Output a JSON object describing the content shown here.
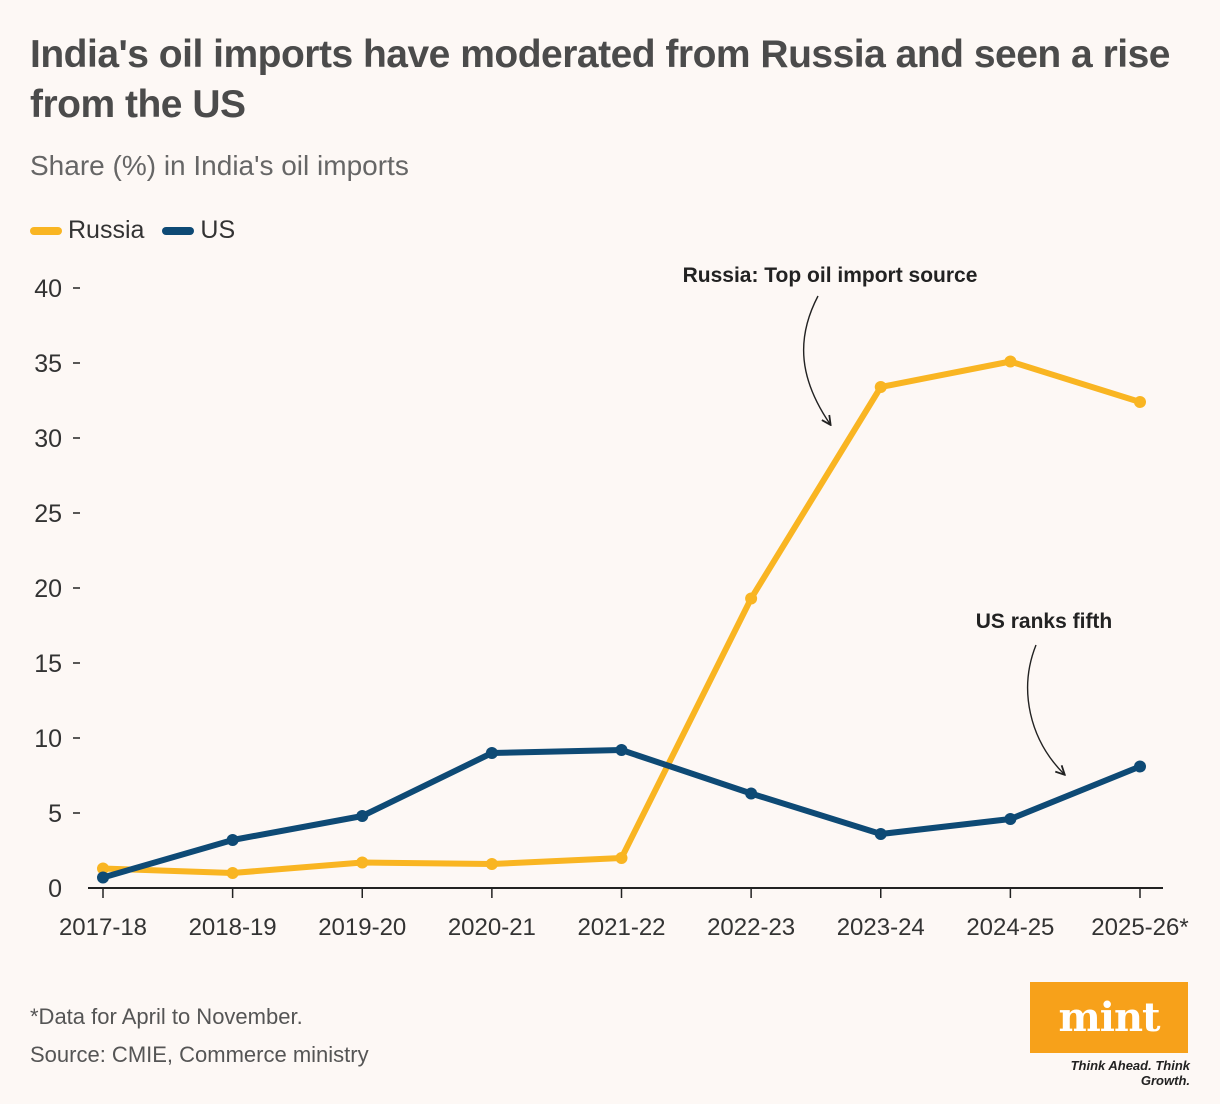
{
  "title": "India's oil imports have moderated from Russia and seen a rise from the US",
  "subtitle": "Share (%) in India's oil imports",
  "footnote": "*Data for April to November.",
  "source": "Source: CMIE, Commerce ministry",
  "logo": {
    "word": "mint",
    "tagline": "Think Ahead. Think Growth.",
    "color": "#f7a11a"
  },
  "chart_data": {
    "type": "line",
    "x": [
      "2017-18",
      "2018-19",
      "2019-20",
      "2020-21",
      "2021-22",
      "2022-23",
      "2023-24",
      "2024-25",
      "2025-26*"
    ],
    "series": [
      {
        "name": "Russia",
        "color": "#f9b522",
        "values": [
          1.3,
          1.0,
          1.7,
          1.6,
          2.0,
          19.3,
          33.4,
          35.1,
          32.4
        ]
      },
      {
        "name": "US",
        "color": "#0e4a75",
        "values": [
          0.7,
          3.2,
          4.8,
          9.0,
          9.2,
          6.3,
          3.6,
          4.6,
          8.1
        ]
      }
    ],
    "ylim": [
      0,
      40
    ],
    "yticks": [
      0,
      5,
      10,
      15,
      20,
      25,
      30,
      35,
      40
    ],
    "grid": false,
    "legend": "top-left",
    "annotations": [
      {
        "text": "Russia: Top oil import source",
        "series": "Russia"
      },
      {
        "text": "US ranks fifth",
        "series": "US"
      }
    ]
  }
}
